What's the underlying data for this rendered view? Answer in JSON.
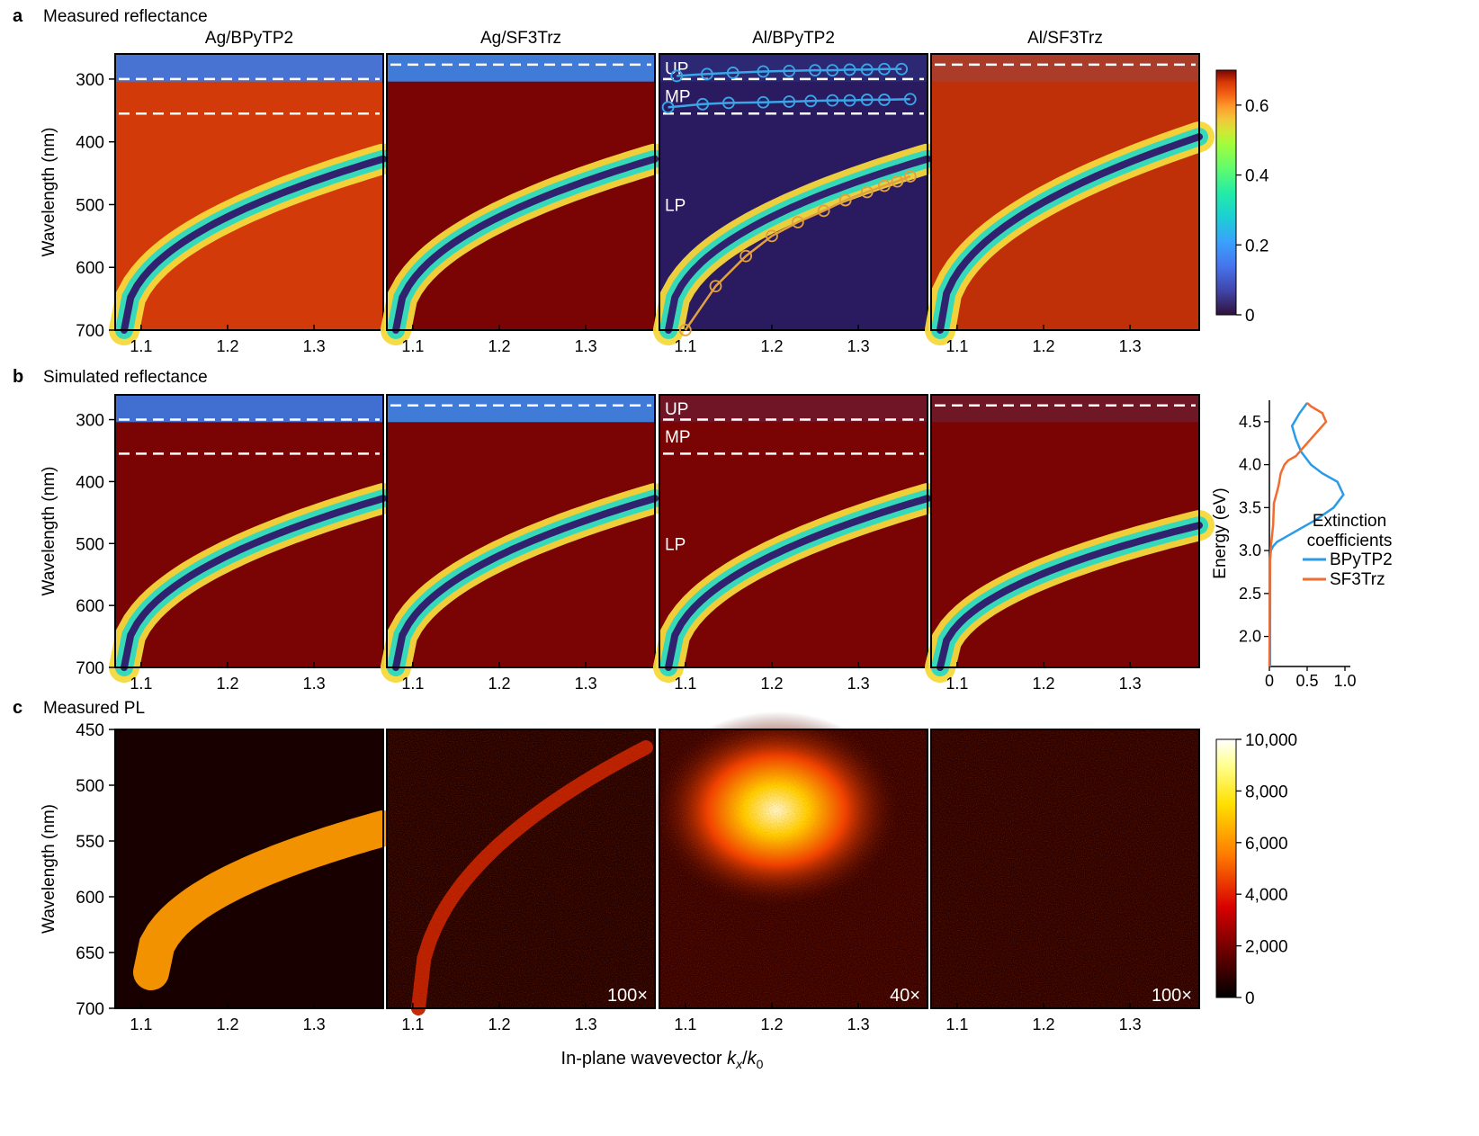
{
  "figure": {
    "xlabel_prefix": "In-plane wavevector ",
    "xlabel_k": "k",
    "xlabel_x": "x",
    "xlabel_slash": "/",
    "xlabel_k0": "k",
    "xlabel_0": "0",
    "ylabel": "Wavelength (nm)"
  },
  "colors": {
    "dashed": "#ffffff",
    "up_mp_fit": "#3aa6e8",
    "lp_fit": "#e0a040",
    "bpytp2": "#2b9be8",
    "sf3trz": "#f26b2f"
  },
  "chart_data": [
    {
      "type": "heatmap",
      "panel_letter": "a",
      "title": "Measured reflectance",
      "columns": [
        "Ag/BPyTP2",
        "Ag/SF3Trz",
        "Al/BPyTP2",
        "Al/SF3Trz"
      ],
      "xlim": [
        1.07,
        1.38
      ],
      "xticks": [
        "1.1",
        "1.2",
        "1.3"
      ],
      "ylim": [
        260,
        700
      ],
      "yticks": [
        "300",
        "400",
        "500",
        "600",
        "700"
      ],
      "dashed_lines_nm": [
        [
          300,
          355
        ],
        [
          277
        ],
        [
          300,
          355
        ],
        [
          277
        ]
      ],
      "region_labels": [
        "UP",
        "MP",
        "LP"
      ],
      "fit_points": {
        "UP": {
          "x": [
            1.09,
            1.125,
            1.155,
            1.19,
            1.22,
            1.25,
            1.27,
            1.29,
            1.31,
            1.33,
            1.35
          ],
          "y": [
            295,
            292,
            290,
            288,
            287,
            286,
            286,
            285,
            285,
            284,
            284
          ]
        },
        "MP": {
          "x": [
            1.08,
            1.12,
            1.15,
            1.19,
            1.22,
            1.245,
            1.27,
            1.29,
            1.31,
            1.33,
            1.36
          ],
          "y": [
            345,
            340,
            338,
            337,
            336,
            335,
            334,
            334,
            333,
            333,
            332
          ]
        },
        "LP": {
          "x": [
            1.1,
            1.135,
            1.17,
            1.2,
            1.23,
            1.26,
            1.285,
            1.31,
            1.33,
            1.345,
            1.36
          ],
          "y": [
            700,
            630,
            582,
            550,
            528,
            510,
            493,
            480,
            470,
            463,
            455
          ]
        }
      },
      "colorbar": {
        "min": 0,
        "max": 0.7,
        "ticks": [
          "0",
          "0.2",
          "0.4",
          "0.6"
        ],
        "colormap": "turbo"
      }
    },
    {
      "type": "heatmap",
      "panel_letter": "b",
      "title": "Simulated reflectance",
      "columns": [
        "Ag/BPyTP2",
        "Ag/SF3Trz",
        "Al/BPyTP2",
        "Al/SF3Trz"
      ],
      "xlim": [
        1.07,
        1.38
      ],
      "xticks": [
        "1.1",
        "1.2",
        "1.3"
      ],
      "ylim": [
        260,
        700
      ],
      "yticks": [
        "300",
        "400",
        "500",
        "600",
        "700"
      ],
      "dashed_lines_nm": [
        [
          300,
          355
        ],
        [
          277
        ],
        [
          300,
          355
        ],
        [
          277
        ]
      ],
      "region_labels": [
        "UP",
        "MP",
        "LP"
      ]
    },
    {
      "type": "line",
      "title": "",
      "legend_title": "Extinction coefficients",
      "ylabel": "Energy (eV)",
      "yticks": [
        "2.0",
        "2.5",
        "3.0",
        "3.5",
        "4.0",
        "4.5"
      ],
      "ylim": [
        1.65,
        4.75
      ],
      "xticks": [
        "0",
        "0.5",
        "1.0"
      ],
      "xlim": [
        0,
        1.0
      ],
      "series": [
        {
          "name": "BPyTP2",
          "x": [
            0.01,
            0.01,
            0.01,
            0.02,
            0.05,
            0.1,
            0.2,
            0.4,
            0.6,
            0.85,
            0.98,
            0.9,
            0.7,
            0.55,
            0.42,
            0.35,
            0.3,
            0.4,
            0.5
          ],
          "y": [
            1.65,
            2.5,
            2.9,
            3.0,
            3.05,
            3.1,
            3.15,
            3.25,
            3.35,
            3.5,
            3.65,
            3.8,
            3.9,
            4.0,
            4.15,
            4.3,
            4.45,
            4.6,
            4.72
          ]
        },
        {
          "name": "SF3Trz",
          "x": [
            0.0,
            0.01,
            0.02,
            0.05,
            0.06,
            0.09,
            0.12,
            0.15,
            0.2,
            0.25,
            0.35,
            0.5,
            0.65,
            0.75,
            0.7,
            0.55,
            0.5
          ],
          "y": [
            1.65,
            2.9,
            3.05,
            3.3,
            3.55,
            3.65,
            3.75,
            3.9,
            4.0,
            4.05,
            4.1,
            4.25,
            4.4,
            4.5,
            4.6,
            4.68,
            4.72
          ]
        }
      ]
    },
    {
      "type": "heatmap",
      "panel_letter": "c",
      "title": "Measured PL",
      "columns": [
        "Ag/BPyTP2",
        "Ag/SF3Trz",
        "Al/BPyTP2",
        "Al/SF3Trz"
      ],
      "xlim": [
        1.07,
        1.38
      ],
      "xticks": [
        "1.1",
        "1.2",
        "1.3"
      ],
      "ylim": [
        450,
        700
      ],
      "yticks": [
        "450",
        "500",
        "550",
        "600",
        "650",
        "700"
      ],
      "multipliers": [
        "",
        "100×",
        "40×",
        "100×"
      ],
      "colorbar": {
        "min": 0,
        "max": 10000,
        "ticks": [
          "0",
          "2,000",
          "4,000",
          "6,000",
          "8,000",
          "10,000"
        ],
        "colormap": "hot"
      }
    }
  ]
}
